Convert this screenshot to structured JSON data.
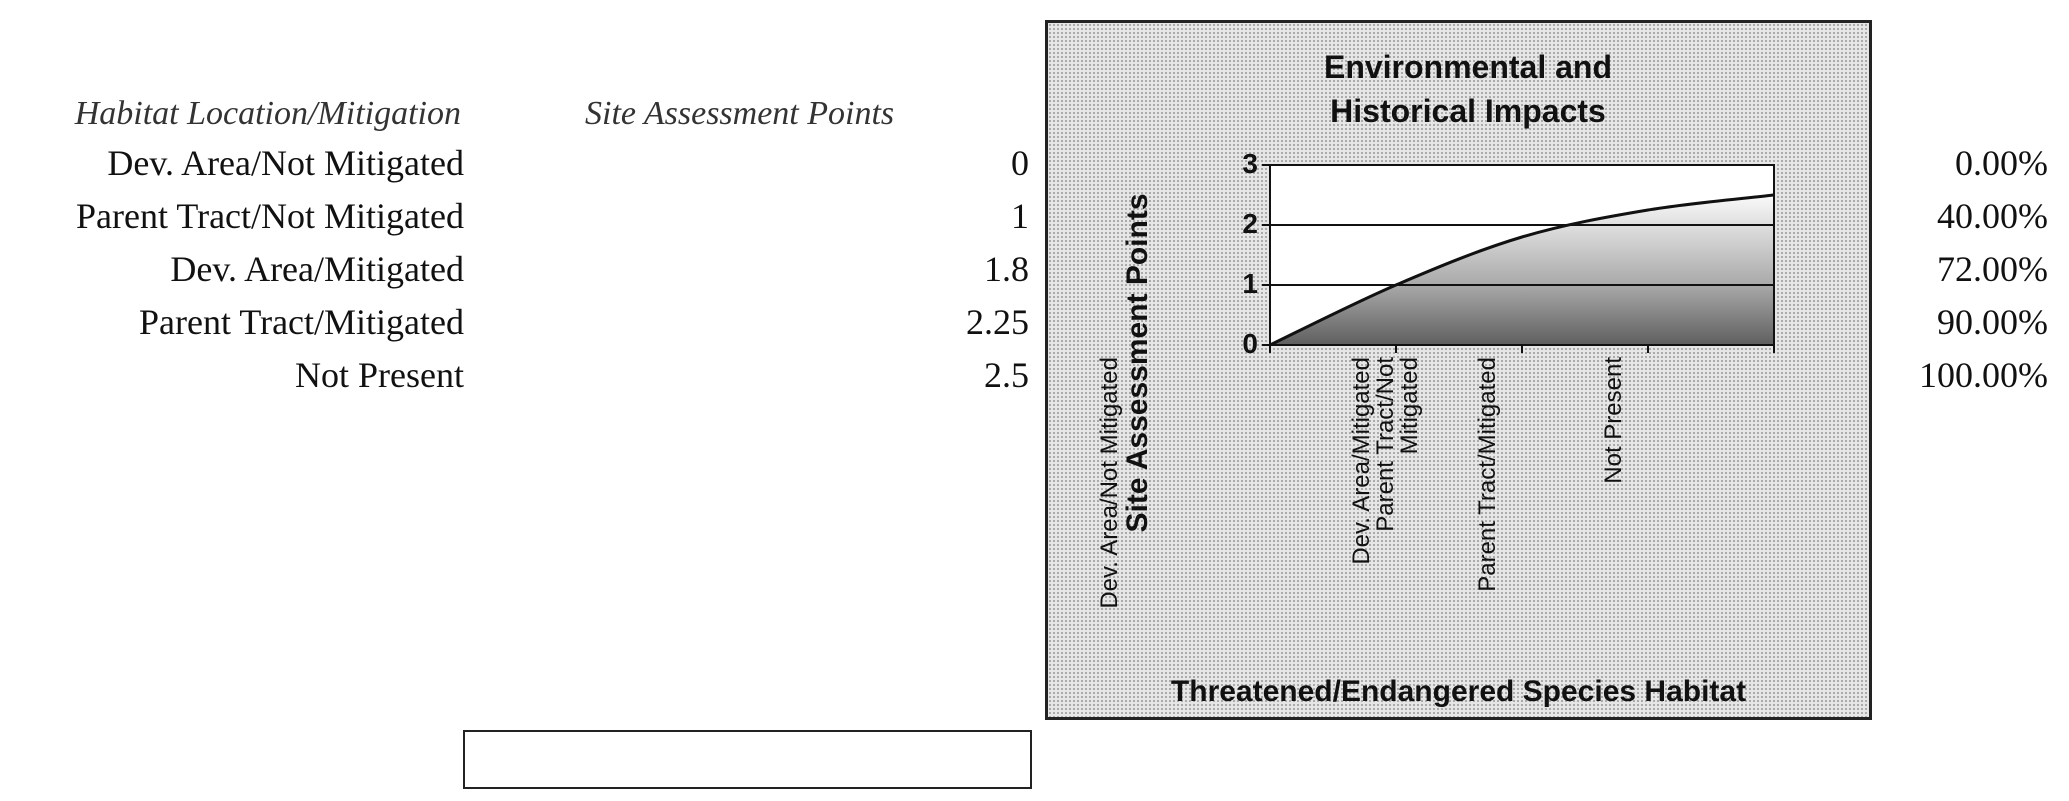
{
  "table": {
    "header_label": "Habitat Location/Mitigation",
    "header_points": "Site Assessment Points",
    "rows": [
      {
        "label": "Dev. Area/Not Mitigated",
        "points": "0",
        "percent": "0.00%"
      },
      {
        "label": "Parent Tract/Not Mitigated",
        "points": "1",
        "percent": "40.00%"
      },
      {
        "label": "Dev. Area/Mitigated",
        "points": "1.8",
        "percent": "72.00%"
      },
      {
        "label": "Parent Tract/Mitigated",
        "points": "2.25",
        "percent": "90.00%"
      },
      {
        "label": "Not Present",
        "points": "2.5",
        "percent": "100.00%"
      }
    ]
  },
  "entry_box": {
    "value": ""
  },
  "chart_data": {
    "type": "area",
    "title": "Environmental and Historical Impacts",
    "xlabel": "Threatened/Endangered Species Habitat",
    "ylabel": "Site Assessment Points",
    "categories": [
      "Dev. Area/Not Mitigated",
      "Parent Tract/Not Mitigated",
      "Dev. Area/Mitigated",
      "Parent Tract/Mitigated",
      "Not Present"
    ],
    "values": [
      0,
      1,
      1.8,
      2.25,
      2.5
    ],
    "ylim": [
      0,
      3
    ],
    "yticks": [
      0,
      1,
      2,
      3
    ],
    "grid": "horizontal",
    "legend": "none"
  }
}
